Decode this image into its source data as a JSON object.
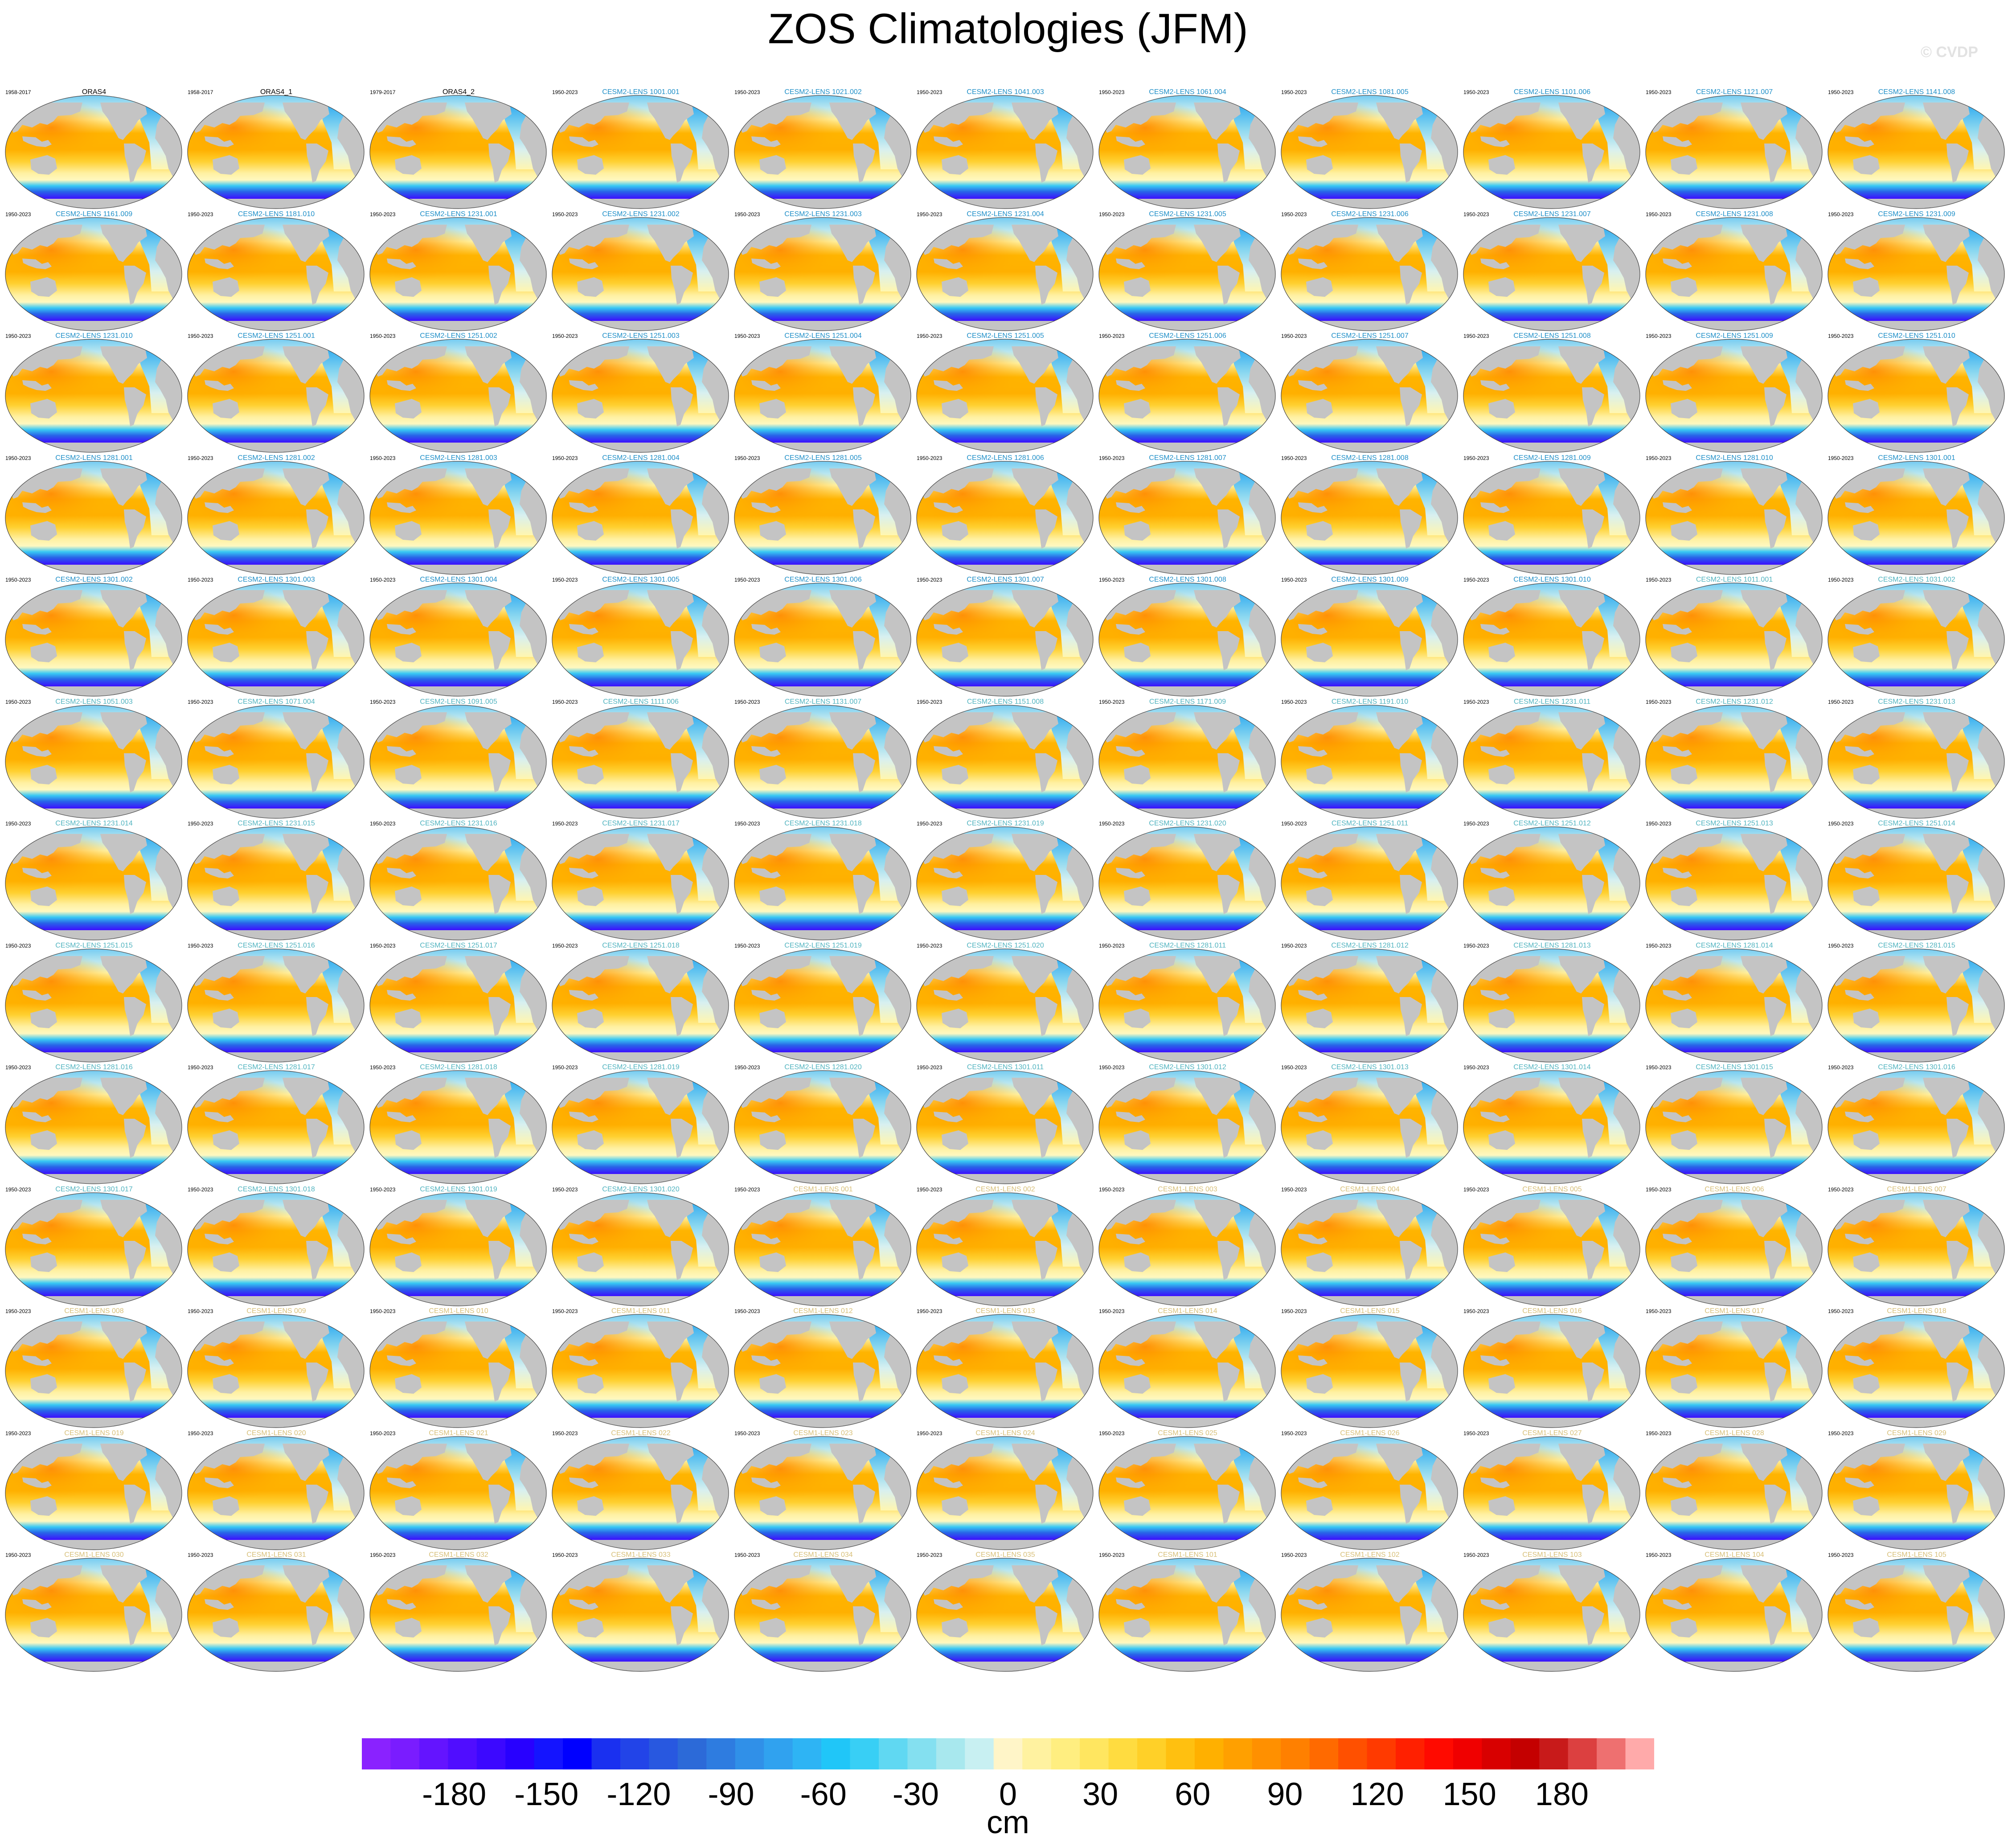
{
  "title": "ZOS Climatologies (JFM)",
  "watermark": "© CVDP",
  "chart_data": {
    "type": "heatmap",
    "description_of_layout": "grid of 13 rows x 11 columns of global sea surface height climatology maps",
    "colorbar": {
      "units": "cm",
      "ticks": [
        "-180",
        "-150",
        "-120",
        "-90",
        "-60",
        "-30",
        "0",
        "30",
        "60",
        "90",
        "120",
        "150",
        "180"
      ],
      "range": [
        -210,
        210
      ],
      "colors": [
        "#8a22ff",
        "#7a1cff",
        "#6414ff",
        "#500dff",
        "#3c08ff",
        "#2800ff",
        "#1414ff",
        "#0000ff",
        "#1a30f0",
        "#2244e8",
        "#2858e0",
        "#2c6ad8",
        "#2e7ce0",
        "#3090e8",
        "#30a2ef",
        "#2eb4f4",
        "#20c6f8",
        "#38cff5",
        "#60d8f2",
        "#84e0f0",
        "#a8e8ee",
        "#c8f0f2",
        "#fff5c8",
        "#fff2a0",
        "#ffee80",
        "#ffe660",
        "#ffdc40",
        "#ffd028",
        "#ffc010",
        "#ffb000",
        "#ffa000",
        "#ff9000",
        "#ff8000",
        "#ff6a00",
        "#ff5000",
        "#ff3a00",
        "#ff2000",
        "#ff0a00",
        "#f00000",
        "#d80000",
        "#c40000",
        "#c81a1a",
        "#dc4040",
        "#ee7070",
        "#ffaaaa"
      ]
    },
    "panels": [
      {
        "label": "ORAS4",
        "period": "1958-2017",
        "group": "obs"
      },
      {
        "label": "ORAS4_1",
        "period": "1958-2017",
        "group": "obs"
      },
      {
        "label": "ORAS4_2",
        "period": "1979-2017",
        "group": "obs"
      },
      {
        "label": "CESM2-LENS 1001.001",
        "period": "1950-2023",
        "group": "cesm2"
      },
      {
        "label": "CESM2-LENS 1021.002",
        "period": "1950-2023",
        "group": "cesm2"
      },
      {
        "label": "CESM2-LENS 1041.003",
        "period": "1950-2023",
        "group": "cesm2"
      },
      {
        "label": "CESM2-LENS 1061.004",
        "period": "1950-2023",
        "group": "cesm2"
      },
      {
        "label": "CESM2-LENS 1081.005",
        "period": "1950-2023",
        "group": "cesm2"
      },
      {
        "label": "CESM2-LENS 1101.006",
        "period": "1950-2023",
        "group": "cesm2"
      },
      {
        "label": "CESM2-LENS 1121.007",
        "period": "1950-2023",
        "group": "cesm2"
      },
      {
        "label": "CESM2-LENS 1141.008",
        "period": "1950-2023",
        "group": "cesm2"
      },
      {
        "label": "CESM2-LENS 1161.009",
        "period": "1950-2023",
        "group": "cesm2"
      },
      {
        "label": "CESM2-LENS 1181.010",
        "period": "1950-2023",
        "group": "cesm2"
      },
      {
        "label": "CESM2-LENS 1231.001",
        "period": "1950-2023",
        "group": "cesm2"
      },
      {
        "label": "CESM2-LENS 1231.002",
        "period": "1950-2023",
        "group": "cesm2"
      },
      {
        "label": "CESM2-LENS 1231.003",
        "period": "1950-2023",
        "group": "cesm2"
      },
      {
        "label": "CESM2-LENS 1231.004",
        "period": "1950-2023",
        "group": "cesm2"
      },
      {
        "label": "CESM2-LENS 1231.005",
        "period": "1950-2023",
        "group": "cesm2"
      },
      {
        "label": "CESM2-LENS 1231.006",
        "period": "1950-2023",
        "group": "cesm2"
      },
      {
        "label": "CESM2-LENS 1231.007",
        "period": "1950-2023",
        "group": "cesm2"
      },
      {
        "label": "CESM2-LENS 1231.008",
        "period": "1950-2023",
        "group": "cesm2"
      },
      {
        "label": "CESM2-LENS 1231.009",
        "period": "1950-2023",
        "group": "cesm2"
      },
      {
        "label": "CESM2-LENS 1231.010",
        "period": "1950-2023",
        "group": "cesm2"
      },
      {
        "label": "CESM2-LENS 1251.001",
        "period": "1950-2023",
        "group": "cesm2"
      },
      {
        "label": "CESM2-LENS 1251.002",
        "period": "1950-2023",
        "group": "cesm2"
      },
      {
        "label": "CESM2-LENS 1251.003",
        "period": "1950-2023",
        "group": "cesm2"
      },
      {
        "label": "CESM2-LENS 1251.004",
        "period": "1950-2023",
        "group": "cesm2"
      },
      {
        "label": "CESM2-LENS 1251.005",
        "period": "1950-2023",
        "group": "cesm2"
      },
      {
        "label": "CESM2-LENS 1251.006",
        "period": "1950-2023",
        "group": "cesm2"
      },
      {
        "label": "CESM2-LENS 1251.007",
        "period": "1950-2023",
        "group": "cesm2"
      },
      {
        "label": "CESM2-LENS 1251.008",
        "period": "1950-2023",
        "group": "cesm2"
      },
      {
        "label": "CESM2-LENS 1251.009",
        "period": "1950-2023",
        "group": "cesm2"
      },
      {
        "label": "CESM2-LENS 1251.010",
        "period": "1950-2023",
        "group": "cesm2"
      },
      {
        "label": "CESM2-LENS 1281.001",
        "period": "1950-2023",
        "group": "cesm2"
      },
      {
        "label": "CESM2-LENS 1281.002",
        "period": "1950-2023",
        "group": "cesm2"
      },
      {
        "label": "CESM2-LENS 1281.003",
        "period": "1950-2023",
        "group": "cesm2"
      },
      {
        "label": "CESM2-LENS 1281.004",
        "period": "1950-2023",
        "group": "cesm2"
      },
      {
        "label": "CESM2-LENS 1281.005",
        "period": "1950-2023",
        "group": "cesm2"
      },
      {
        "label": "CESM2-LENS 1281.006",
        "period": "1950-2023",
        "group": "cesm2"
      },
      {
        "label": "CESM2-LENS 1281.007",
        "period": "1950-2023",
        "group": "cesm2"
      },
      {
        "label": "CESM2-LENS 1281.008",
        "period": "1950-2023",
        "group": "cesm2"
      },
      {
        "label": "CESM2-LENS 1281.009",
        "period": "1950-2023",
        "group": "cesm2"
      },
      {
        "label": "CESM2-LENS 1281.010",
        "period": "1950-2023",
        "group": "cesm2"
      },
      {
        "label": "CESM2-LENS 1301.001",
        "period": "1950-2023",
        "group": "cesm2"
      },
      {
        "label": "CESM2-LENS 1301.002",
        "period": "1950-2023",
        "group": "cesm2"
      },
      {
        "label": "CESM2-LENS 1301.003",
        "period": "1950-2023",
        "group": "cesm2"
      },
      {
        "label": "CESM2-LENS 1301.004",
        "period": "1950-2023",
        "group": "cesm2"
      },
      {
        "label": "CESM2-LENS 1301.005",
        "period": "1950-2023",
        "group": "cesm2"
      },
      {
        "label": "CESM2-LENS 1301.006",
        "period": "1950-2023",
        "group": "cesm2"
      },
      {
        "label": "CESM2-LENS 1301.007",
        "period": "1950-2023",
        "group": "cesm2"
      },
      {
        "label": "CESM2-LENS 1301.008",
        "period": "1950-2023",
        "group": "cesm2"
      },
      {
        "label": "CESM2-LENS 1301.009",
        "period": "1950-2023",
        "group": "cesm2"
      },
      {
        "label": "CESM2-LENS 1301.010",
        "period": "1950-2023",
        "group": "cesm2"
      },
      {
        "label": "CESM2-LENS 1011.001",
        "period": "1950-2023",
        "group": "cesm2-smbb"
      },
      {
        "label": "CESM2-LENS 1031.002",
        "period": "1950-2023",
        "group": "cesm2-smbb"
      },
      {
        "label": "CESM2-LENS 1051.003",
        "period": "1950-2023",
        "group": "cesm2-smbb"
      },
      {
        "label": "CESM2-LENS 1071.004",
        "period": "1950-2023",
        "group": "cesm2-smbb"
      },
      {
        "label": "CESM2-LENS 1091.005",
        "period": "1950-2023",
        "group": "cesm2-smbb"
      },
      {
        "label": "CESM2-LENS 1111.006",
        "period": "1950-2023",
        "group": "cesm2-smbb"
      },
      {
        "label": "CESM2-LENS 1131.007",
        "period": "1950-2023",
        "group": "cesm2-smbb"
      },
      {
        "label": "CESM2-LENS 1151.008",
        "period": "1950-2023",
        "group": "cesm2-smbb"
      },
      {
        "label": "CESM2-LENS 1171.009",
        "period": "1950-2023",
        "group": "cesm2-smbb"
      },
      {
        "label": "CESM2-LENS 1191.010",
        "period": "1950-2023",
        "group": "cesm2-smbb"
      },
      {
        "label": "CESM2-LENS 1231.011",
        "period": "1950-2023",
        "group": "cesm2-smbb"
      },
      {
        "label": "CESM2-LENS 1231.012",
        "period": "1950-2023",
        "group": "cesm2-smbb"
      },
      {
        "label": "CESM2-LENS 1231.013",
        "period": "1950-2023",
        "group": "cesm2-smbb"
      },
      {
        "label": "CESM2-LENS 1231.014",
        "period": "1950-2023",
        "group": "cesm2-smbb"
      },
      {
        "label": "CESM2-LENS 1231.015",
        "period": "1950-2023",
        "group": "cesm2-smbb"
      },
      {
        "label": "CESM2-LENS 1231.016",
        "period": "1950-2023",
        "group": "cesm2-smbb"
      },
      {
        "label": "CESM2-LENS 1231.017",
        "period": "1950-2023",
        "group": "cesm2-smbb"
      },
      {
        "label": "CESM2-LENS 1231.018",
        "period": "1950-2023",
        "group": "cesm2-smbb"
      },
      {
        "label": "CESM2-LENS 1231.019",
        "period": "1950-2023",
        "group": "cesm2-smbb"
      },
      {
        "label": "CESM2-LENS 1231.020",
        "period": "1950-2023",
        "group": "cesm2-smbb"
      },
      {
        "label": "CESM2-LENS 1251.011",
        "period": "1950-2023",
        "group": "cesm2-smbb"
      },
      {
        "label": "CESM2-LENS 1251.012",
        "period": "1950-2023",
        "group": "cesm2-smbb"
      },
      {
        "label": "CESM2-LENS 1251.013",
        "period": "1950-2023",
        "group": "cesm2-smbb"
      },
      {
        "label": "CESM2-LENS 1251.014",
        "period": "1950-2023",
        "group": "cesm2-smbb"
      },
      {
        "label": "CESM2-LENS 1251.015",
        "period": "1950-2023",
        "group": "cesm2-smbb"
      },
      {
        "label": "CESM2-LENS 1251.016",
        "period": "1950-2023",
        "group": "cesm2-smbb"
      },
      {
        "label": "CESM2-LENS 1251.017",
        "period": "1950-2023",
        "group": "cesm2-smbb"
      },
      {
        "label": "CESM2-LENS 1251.018",
        "period": "1950-2023",
        "group": "cesm2-smbb"
      },
      {
        "label": "CESM2-LENS 1251.019",
        "period": "1950-2023",
        "group": "cesm2-smbb"
      },
      {
        "label": "CESM2-LENS 1251.020",
        "period": "1950-2023",
        "group": "cesm2-smbb"
      },
      {
        "label": "CESM2-LENS 1281.011",
        "period": "1950-2023",
        "group": "cesm2-smbb"
      },
      {
        "label": "CESM2-LENS 1281.012",
        "period": "1950-2023",
        "group": "cesm2-smbb"
      },
      {
        "label": "CESM2-LENS 1281.013",
        "period": "1950-2023",
        "group": "cesm2-smbb"
      },
      {
        "label": "CESM2-LENS 1281.014",
        "period": "1950-2023",
        "group": "cesm2-smbb"
      },
      {
        "label": "CESM2-LENS 1281.015",
        "period": "1950-2023",
        "group": "cesm2-smbb"
      },
      {
        "label": "CESM2-LENS 1281.016",
        "period": "1950-2023",
        "group": "cesm2-smbb"
      },
      {
        "label": "CESM2-LENS 1281.017",
        "period": "1950-2023",
        "group": "cesm2-smbb"
      },
      {
        "label": "CESM2-LENS 1281.018",
        "period": "1950-2023",
        "group": "cesm2-smbb"
      },
      {
        "label": "CESM2-LENS 1281.019",
        "period": "1950-2023",
        "group": "cesm2-smbb"
      },
      {
        "label": "CESM2-LENS 1281.020",
        "period": "1950-2023",
        "group": "cesm2-smbb"
      },
      {
        "label": "CESM2-LENS 1301.011",
        "period": "1950-2023",
        "group": "cesm2-smbb"
      },
      {
        "label": "CESM2-LENS 1301.012",
        "period": "1950-2023",
        "group": "cesm2-smbb"
      },
      {
        "label": "CESM2-LENS 1301.013",
        "period": "1950-2023",
        "group": "cesm2-smbb"
      },
      {
        "label": "CESM2-LENS 1301.014",
        "period": "1950-2023",
        "group": "cesm2-smbb"
      },
      {
        "label": "CESM2-LENS 1301.015",
        "period": "1950-2023",
        "group": "cesm2-smbb"
      },
      {
        "label": "CESM2-LENS 1301.016",
        "period": "1950-2023",
        "group": "cesm2-smbb"
      },
      {
        "label": "CESM2-LENS 1301.017",
        "period": "1950-2023",
        "group": "cesm2-smbb"
      },
      {
        "label": "CESM2-LENS 1301.018",
        "period": "1950-2023",
        "group": "cesm2-smbb"
      },
      {
        "label": "CESM2-LENS 1301.019",
        "period": "1950-2023",
        "group": "cesm2-smbb"
      },
      {
        "label": "CESM2-LENS 1301.020",
        "period": "1950-2023",
        "group": "cesm2-smbb"
      },
      {
        "label": "CESM1-LENS 001",
        "period": "1950-2023",
        "group": "cesm1"
      },
      {
        "label": "CESM1-LENS 002",
        "period": "1950-2023",
        "group": "cesm1"
      },
      {
        "label": "CESM1-LENS 003",
        "period": "1950-2023",
        "group": "cesm1"
      },
      {
        "label": "CESM1-LENS 004",
        "period": "1950-2023",
        "group": "cesm1"
      },
      {
        "label": "CESM1-LENS 005",
        "period": "1950-2023",
        "group": "cesm1"
      },
      {
        "label": "CESM1-LENS 006",
        "period": "1950-2023",
        "group": "cesm1"
      },
      {
        "label": "CESM1-LENS 007",
        "period": "1950-2023",
        "group": "cesm1"
      },
      {
        "label": "CESM1-LENS 008",
        "period": "1950-2023",
        "group": "cesm1"
      },
      {
        "label": "CESM1-LENS 009",
        "period": "1950-2023",
        "group": "cesm1"
      },
      {
        "label": "CESM1-LENS 010",
        "period": "1950-2023",
        "group": "cesm1"
      },
      {
        "label": "CESM1-LENS 011",
        "period": "1950-2023",
        "group": "cesm1"
      },
      {
        "label": "CESM1-LENS 012",
        "period": "1950-2023",
        "group": "cesm1"
      },
      {
        "label": "CESM1-LENS 013",
        "period": "1950-2023",
        "group": "cesm1"
      },
      {
        "label": "CESM1-LENS 014",
        "period": "1950-2023",
        "group": "cesm1"
      },
      {
        "label": "CESM1-LENS 015",
        "period": "1950-2023",
        "group": "cesm1"
      },
      {
        "label": "CESM1-LENS 016",
        "period": "1950-2023",
        "group": "cesm1"
      },
      {
        "label": "CESM1-LENS 017",
        "period": "1950-2023",
        "group": "cesm1"
      },
      {
        "label": "CESM1-LENS 018",
        "period": "1950-2023",
        "group": "cesm1"
      },
      {
        "label": "CESM1-LENS 019",
        "period": "1950-2023",
        "group": "cesm1"
      },
      {
        "label": "CESM1-LENS 020",
        "period": "1950-2023",
        "group": "cesm1"
      },
      {
        "label": "CESM1-LENS 021",
        "period": "1950-2023",
        "group": "cesm1"
      },
      {
        "label": "CESM1-LENS 022",
        "period": "1950-2023",
        "group": "cesm1"
      },
      {
        "label": "CESM1-LENS 023",
        "period": "1950-2023",
        "group": "cesm1"
      },
      {
        "label": "CESM1-LENS 024",
        "period": "1950-2023",
        "group": "cesm1"
      },
      {
        "label": "CESM1-LENS 025",
        "period": "1950-2023",
        "group": "cesm1"
      },
      {
        "label": "CESM1-LENS 026",
        "period": "1950-2023",
        "group": "cesm1"
      },
      {
        "label": "CESM1-LENS 027",
        "period": "1950-2023",
        "group": "cesm1"
      },
      {
        "label": "CESM1-LENS 028",
        "period": "1950-2023",
        "group": "cesm1"
      },
      {
        "label": "CESM1-LENS 029",
        "period": "1950-2023",
        "group": "cesm1"
      },
      {
        "label": "CESM1-LENS 030",
        "period": "1950-2023",
        "group": "cesm1"
      },
      {
        "label": "CESM1-LENS 031",
        "period": "1950-2023",
        "group": "cesm1"
      },
      {
        "label": "CESM1-LENS 032",
        "period": "1950-2023",
        "group": "cesm1"
      },
      {
        "label": "CESM1-LENS 033",
        "period": "1950-2023",
        "group": "cesm1"
      },
      {
        "label": "CESM1-LENS 034",
        "period": "1950-2023",
        "group": "cesm1"
      },
      {
        "label": "CESM1-LENS 035",
        "period": "1950-2023",
        "group": "cesm1"
      },
      {
        "label": "CESM1-LENS 101",
        "period": "1950-2023",
        "group": "cesm1"
      },
      {
        "label": "CESM1-LENS 102",
        "period": "1950-2023",
        "group": "cesm1"
      },
      {
        "label": "CESM1-LENS 103",
        "period": "1950-2023",
        "group": "cesm1"
      },
      {
        "label": "CESM1-LENS 104",
        "period": "1950-2023",
        "group": "cesm1"
      },
      {
        "label": "CESM1-LENS 105",
        "period": "1950-2023",
        "group": "cesm1"
      }
    ],
    "group_title_colors": {
      "obs": "#000000",
      "cesm2": "#1f8fc8",
      "cesm2-smbb": "#52b4c0",
      "cesm1": "#d8c07a"
    }
  }
}
